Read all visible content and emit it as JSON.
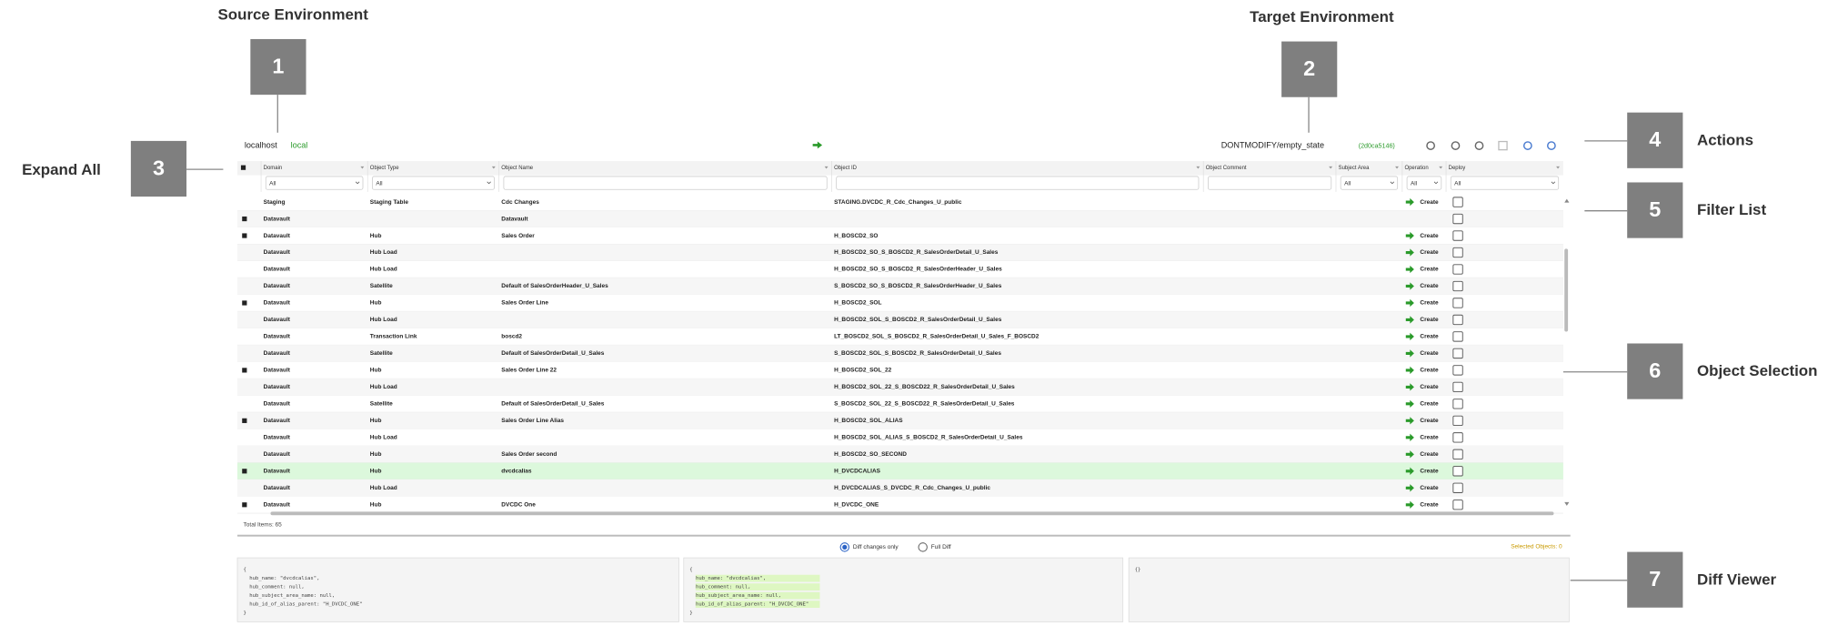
{
  "annotations": [
    {
      "number": "1",
      "label": "Source Environment"
    },
    {
      "number": "2",
      "label": "Target Environment"
    },
    {
      "number": "3",
      "label": "Expand All"
    },
    {
      "number": "4",
      "label": "Actions"
    },
    {
      "number": "5",
      "label": "Filter List"
    },
    {
      "number": "6",
      "label": "Object Selection"
    },
    {
      "number": "7",
      "label": "Diff Viewer"
    }
  ],
  "toolbar": {
    "source_host": "localhost",
    "source_name": "local",
    "target_branch": "DONTMODIFY/empty_state",
    "target_commit": "(2d0ca5146)"
  },
  "table": {
    "columns": [
      "Domain",
      "Object Type",
      "Object Name",
      "Object ID",
      "Object Comment",
      "Subject Area",
      "Operation",
      "Deploy"
    ],
    "filters": [
      "All",
      "All",
      null,
      null,
      null,
      "All",
      "All",
      "All"
    ],
    "rows": [
      {
        "cells": [
          "Staging",
          "Staging Table",
          "Cdc Changes",
          "STAGING.DVCDC_R_Cdc_Changes_U_public",
          null,
          null,
          "Create"
        ],
        "expandable": false,
        "highlighted": false
      },
      {
        "cells": [
          "Datavault",
          null,
          "Datavault",
          null,
          null,
          null,
          null
        ],
        "expandable": true,
        "highlighted": false
      },
      {
        "cells": [
          "Datavault",
          "Hub",
          "Sales Order",
          "H_BOSCD2_SO",
          null,
          null,
          "Create"
        ],
        "expandable": true,
        "highlighted": false
      },
      {
        "cells": [
          "Datavault",
          "Hub Load",
          null,
          "H_BOSCD2_SO_S_BOSCD2_R_SalesOrderDetail_U_Sales",
          null,
          null,
          "Create"
        ],
        "expandable": false,
        "highlighted": false
      },
      {
        "cells": [
          "Datavault",
          "Hub Load",
          null,
          "H_BOSCD2_SO_S_BOSCD2_R_SalesOrderHeader_U_Sales",
          null,
          null,
          "Create"
        ],
        "expandable": false,
        "highlighted": false
      },
      {
        "cells": [
          "Datavault",
          "Satellite",
          "Default of SalesOrderHeader_U_Sales",
          "S_BOSCD2_SO_S_BOSCD2_R_SalesOrderHeader_U_Sales",
          null,
          null,
          "Create"
        ],
        "expandable": false,
        "highlighted": false
      },
      {
        "cells": [
          "Datavault",
          "Hub",
          "Sales Order Line",
          "H_BOSCD2_SOL",
          null,
          null,
          "Create"
        ],
        "expandable": true,
        "highlighted": false
      },
      {
        "cells": [
          "Datavault",
          "Hub Load",
          null,
          "H_BOSCD2_SOL_S_BOSCD2_R_SalesOrderDetail_U_Sales",
          null,
          null,
          "Create"
        ],
        "expandable": false,
        "highlighted": false
      },
      {
        "cells": [
          "Datavault",
          "Transaction Link",
          "boscd2",
          "LT_BOSCD2_SOL_S_BOSCD2_R_SalesOrderDetail_U_Sales_F_BOSCD2",
          null,
          null,
          "Create"
        ],
        "expandable": false,
        "highlighted": false
      },
      {
        "cells": [
          "Datavault",
          "Satellite",
          "Default of SalesOrderDetail_U_Sales",
          "S_BOSCD2_SOL_S_BOSCD2_R_SalesOrderDetail_U_Sales",
          null,
          null,
          "Create"
        ],
        "expandable": false,
        "highlighted": false
      },
      {
        "cells": [
          "Datavault",
          "Hub",
          "Sales Order Line 22",
          "H_BOSCD2_SOL_22",
          null,
          null,
          "Create"
        ],
        "expandable": true,
        "highlighted": false
      },
      {
        "cells": [
          "Datavault",
          "Hub Load",
          null,
          "H_BOSCD2_SOL_22_S_BOSCD22_R_SalesOrderDetail_U_Sales",
          null,
          null,
          "Create"
        ],
        "expandable": false,
        "highlighted": false
      },
      {
        "cells": [
          "Datavault",
          "Satellite",
          "Default of SalesOrderDetail_U_Sales",
          "S_BOSCD2_SOL_22_S_BOSCD22_R_SalesOrderDetail_U_Sales",
          null,
          null,
          "Create"
        ],
        "expandable": false,
        "highlighted": false
      },
      {
        "cells": [
          "Datavault",
          "Hub",
          "Sales Order Line Alias",
          "H_BOSCD2_SOL_ALIAS",
          null,
          null,
          "Create"
        ],
        "expandable": true,
        "highlighted": false
      },
      {
        "cells": [
          "Datavault",
          "Hub Load",
          null,
          "H_BOSCD2_SOL_ALIAS_S_BOSCD2_R_SalesOrderDetail_U_Sales",
          null,
          null,
          "Create"
        ],
        "expandable": false,
        "highlighted": false
      },
      {
        "cells": [
          "Datavault",
          "Hub",
          "Sales Order second",
          "H_BOSCD2_SO_SECOND",
          null,
          null,
          "Create"
        ],
        "expandable": false,
        "highlighted": false
      },
      {
        "cells": [
          "Datavault",
          "Hub",
          "dvcdcalias",
          "H_DVCDCALIAS",
          null,
          null,
          "Create"
        ],
        "expandable": true,
        "highlighted": true
      },
      {
        "cells": [
          "Datavault",
          "Hub Load",
          null,
          "H_DVCDCALIAS_S_DVCDC_R_Cdc_Changes_U_public",
          null,
          null,
          "Create"
        ],
        "expandable": false,
        "highlighted": false
      },
      {
        "cells": [
          "Datavault",
          "Hub",
          "DVCDC One",
          "H_DVCDC_ONE",
          null,
          null,
          "Create"
        ],
        "expandable": true,
        "highlighted": false
      }
    ],
    "total_items": "Total Items: 65"
  },
  "diff": {
    "options": [
      "Diff changes only",
      "Full Diff"
    ],
    "selected_objects": "Selected Objects: 0",
    "panels": [
      {
        "lines": [
          "{",
          "  hub_name: \"dvcdcalias\",",
          "  hub_comment: null,",
          "  hub_subject_area_name: null,",
          "  hub_id_of_alias_parent: \"H_DVCDC_ONE\"",
          "}"
        ],
        "highlighted": false
      },
      {
        "lines": [
          "{",
          "  hub_name: \"dvcdcalias\",",
          "  hub_comment: null,",
          "  hub_subject_area_name: null,",
          "  hub_id_of_alias_parent: \"H_DVCDC_ONE\"",
          "}"
        ],
        "highlighted": true
      },
      {
        "lines": [
          "{}"
        ],
        "highlighted": false
      }
    ]
  }
}
